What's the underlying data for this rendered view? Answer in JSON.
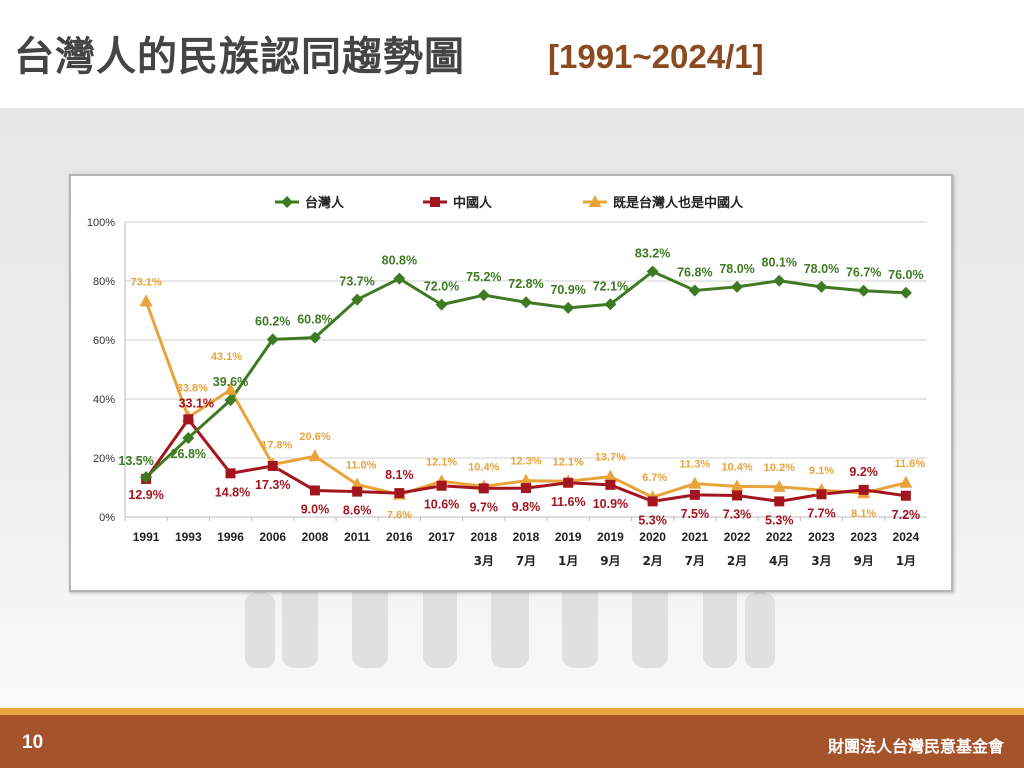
{
  "slide": {
    "title": "台灣人的民族認同趨勢圖",
    "subtitle": "[1991~2024/1]",
    "page_number": "10",
    "organization": "財團法人台灣民意基金會"
  },
  "colors": {
    "taiwanese": "#3e7a22",
    "chinese": "#a3161f",
    "both": "#e8a43a",
    "title": "#444444",
    "subtitle": "#8b4a1f",
    "footer_bar": "#a4532b",
    "footer_stripe": "#e7a43a"
  },
  "chart_data": {
    "type": "line",
    "title": "",
    "xlabel": "",
    "ylabel": "",
    "ylim": [
      0,
      100
    ],
    "yticks": [
      "0%",
      "20%",
      "40%",
      "60%",
      "80%",
      "100%"
    ],
    "grid": true,
    "legend_position": "top",
    "categories": [
      {
        "year": "1991",
        "month": ""
      },
      {
        "year": "1993",
        "month": ""
      },
      {
        "year": "1996",
        "month": ""
      },
      {
        "year": "2006",
        "month": ""
      },
      {
        "year": "2008",
        "month": ""
      },
      {
        "year": "2011",
        "month": ""
      },
      {
        "year": "2016",
        "month": ""
      },
      {
        "year": "2017",
        "month": ""
      },
      {
        "year": "2018",
        "month": "3月"
      },
      {
        "year": "2018",
        "month": "7月"
      },
      {
        "year": "2019",
        "month": "1月"
      },
      {
        "year": "2019",
        "month": "9月"
      },
      {
        "year": "2020",
        "month": "2月"
      },
      {
        "year": "2021",
        "month": "7月"
      },
      {
        "year": "2022",
        "month": "2月"
      },
      {
        "year": "2022",
        "month": "4月"
      },
      {
        "year": "2023",
        "month": "3月"
      },
      {
        "year": "2023",
        "month": "9月"
      },
      {
        "year": "2024",
        "month": "1月"
      }
    ],
    "series": [
      {
        "name": "台灣人",
        "key": "taiwanese",
        "values": [
          13.5,
          26.8,
          39.6,
          60.2,
          60.8,
          73.7,
          80.8,
          72.0,
          75.2,
          72.8,
          70.9,
          72.1,
          83.2,
          76.8,
          78.0,
          80.1,
          78.0,
          76.7,
          76.0
        ],
        "labels": [
          "13.5%",
          "26.8%",
          "39.6%",
          "60.2%",
          "60.8%",
          "73.7%",
          "80.8%",
          "72.0%",
          "75.2%",
          "72.8%",
          "70.9%",
          "72.1%",
          "83.2%",
          "76.8%",
          "78.0%",
          "80.1%",
          "78.0%",
          "76.7%",
          "76.0%"
        ]
      },
      {
        "name": "中國人",
        "key": "chinese",
        "values": [
          12.9,
          33.1,
          14.8,
          17.3,
          9.0,
          8.6,
          8.1,
          10.6,
          9.7,
          9.8,
          11.6,
          10.9,
          5.3,
          7.5,
          7.3,
          5.3,
          7.7,
          9.2,
          7.2
        ],
        "labels": [
          "12.9%",
          "33.1%",
          "14.8%",
          "17.3%",
          "9.0%",
          "8.6%",
          "8.1%",
          "10.6%",
          "9.7%",
          "9.8%",
          "11.6%",
          "10.9%",
          "5.3%",
          "7.5%",
          "7.3%",
          "5.3%",
          "7.7%",
          "9.2%",
          "7.2%"
        ]
      },
      {
        "name": "既是台灣人也是中國人",
        "key": "both",
        "values": [
          73.1,
          33.8,
          43.1,
          17.8,
          20.6,
          11.0,
          7.6,
          12.1,
          10.4,
          12.3,
          12.1,
          13.7,
          6.7,
          11.3,
          10.4,
          10.2,
          9.1,
          8.1,
          11.6
        ],
        "labels": [
          "73.1%",
          "33.8%",
          "43.1%",
          "17.8%",
          "20.6%",
          "11.0%",
          "7.6%",
          "12.1%",
          "10.4%",
          "12.3%",
          "12.1%",
          "13.7%",
          "6.7%",
          "11.3%",
          "10.4%",
          "10.2%",
          "9.1%",
          "8.1%",
          "11.6%"
        ]
      }
    ]
  }
}
